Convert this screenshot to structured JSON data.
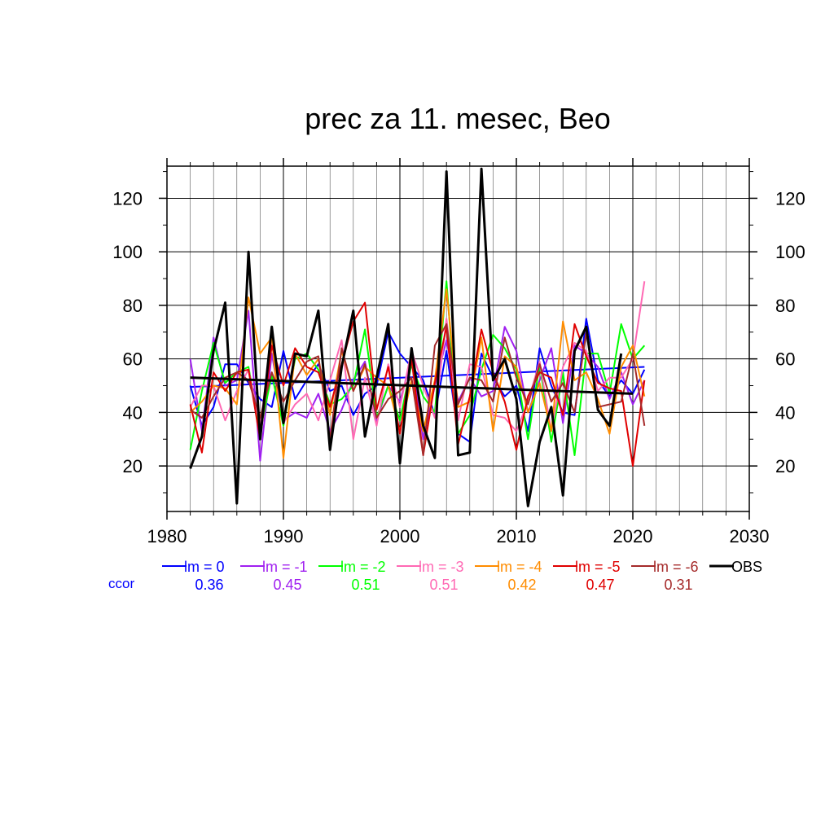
{
  "chart_data": {
    "type": "line",
    "title": "prec za 11. mesec, Beo",
    "xlabel": "",
    "ylabel": "",
    "xlim": [
      1980,
      2030
    ],
    "ylim": [
      3,
      132
    ],
    "x_ticks": [
      1980,
      1990,
      2000,
      2010,
      2020,
      2030
    ],
    "y_ticks": [
      20,
      40,
      60,
      80,
      100,
      120
    ],
    "grid": true,
    "legend_position": "bottom",
    "ccor_label": "ccor",
    "x": [
      1982,
      1983,
      1984,
      1985,
      1986,
      1987,
      1988,
      1989,
      1990,
      1991,
      1992,
      1993,
      1994,
      1995,
      1996,
      1997,
      1998,
      1999,
      2000,
      2001,
      2002,
      2003,
      2004,
      2005,
      2006,
      2007,
      2008,
      2009,
      2010,
      2011,
      2012,
      2013,
      2014,
      2015,
      2016,
      2017,
      2018,
      2019,
      2020,
      2021
    ],
    "series": [
      {
        "name": "lm = 0",
        "ccor": "0.36",
        "color": "#0000ff",
        "values": [
          50,
          35,
          42,
          58,
          58,
          51,
          45,
          42,
          63,
          45,
          52,
          58,
          48,
          50,
          39,
          47,
          50,
          70,
          62,
          57,
          52,
          39,
          63,
          32,
          29,
          62,
          53,
          46,
          50,
          33,
          64,
          50,
          40,
          39,
          75,
          52,
          46,
          52,
          47,
          56
        ],
        "trend": [
          49.5,
          57.0
        ]
      },
      {
        "name": "lm = -1",
        "ccor": "0.45",
        "color": "#a020f0",
        "values": [
          60,
          33,
          68,
          50,
          52,
          78,
          22,
          62,
          37,
          40,
          38,
          47,
          33,
          41,
          52,
          59,
          37,
          50,
          44,
          60,
          30,
          50,
          67,
          44,
          53,
          46,
          48,
          72,
          63,
          40,
          52,
          64,
          36,
          65,
          62,
          57,
          45,
          55,
          43,
          52
        ]
      },
      {
        "name": "lm = -2",
        "ccor": "0.51",
        "color": "#00ff00",
        "values": [
          26,
          48,
          66,
          51,
          55,
          57,
          33,
          54,
          35,
          60,
          62,
          56,
          43,
          45,
          50,
          71,
          38,
          50,
          37,
          58,
          46,
          40,
          89,
          32,
          39,
          56,
          69,
          64,
          56,
          30,
          58,
          29,
          55,
          24,
          62,
          62,
          47,
          73,
          60,
          65
        ]
      },
      {
        "name": "lm = -3",
        "ccor": "0.51",
        "color": "#ff69b4",
        "values": [
          42,
          50,
          50,
          37,
          48,
          56,
          35,
          68,
          36,
          43,
          47,
          37,
          52,
          67,
          30,
          53,
          35,
          58,
          42,
          63,
          50,
          38,
          75,
          37,
          58,
          57,
          39,
          38,
          33,
          44,
          59,
          33,
          57,
          66,
          63,
          48,
          53,
          53,
          60,
          89
        ]
      },
      {
        "name": "lm = -4",
        "ccor": "0.42",
        "color": "#ff8c00",
        "values": [
          40,
          44,
          50,
          49,
          43,
          83,
          62,
          68,
          23,
          62,
          54,
          60,
          39,
          63,
          48,
          57,
          53,
          50,
          33,
          52,
          33,
          52,
          86,
          42,
          44,
          68,
          33,
          61,
          57,
          40,
          51,
          33,
          74,
          52,
          55,
          45,
          32,
          57,
          65,
          46
        ]
      },
      {
        "name": "lm = -5",
        "ccor": "0.47",
        "color": "#e00000",
        "values": [
          43,
          25,
          55,
          48,
          55,
          56,
          30,
          65,
          50,
          64,
          57,
          55,
          42,
          58,
          74,
          81,
          41,
          57,
          32,
          60,
          24,
          51,
          72,
          28,
          46,
          71,
          55,
          44,
          26,
          46,
          55,
          53,
          39,
          73,
          61,
          51,
          49,
          48,
          20,
          52
        ]
      },
      {
        "name": "lm = -6",
        "ccor": "0.31",
        "color": "#a52a2a",
        "values": [
          41,
          38,
          46,
          53,
          55,
          52,
          38,
          55,
          44,
          52,
          59,
          61,
          30,
          64,
          48,
          58,
          38,
          45,
          48,
          53,
          24,
          65,
          73,
          43,
          53,
          52,
          44,
          68,
          53,
          43,
          58,
          44,
          51,
          40,
          70,
          42,
          43,
          44,
          62,
          35
        ]
      },
      {
        "name": "OBS",
        "ccor": "",
        "color": "#000000",
        "values": [
          19,
          31,
          63,
          81,
          6,
          100,
          30,
          72,
          36,
          62,
          61,
          78,
          26,
          57,
          78,
          31,
          53,
          73,
          21,
          64,
          35,
          23,
          130,
          24,
          25,
          131,
          52,
          60,
          45,
          5,
          29,
          42,
          9,
          63,
          72,
          41,
          35,
          62,
          null,
          null
        ],
        "trend": [
          53.0,
          47.0
        ]
      }
    ]
  }
}
